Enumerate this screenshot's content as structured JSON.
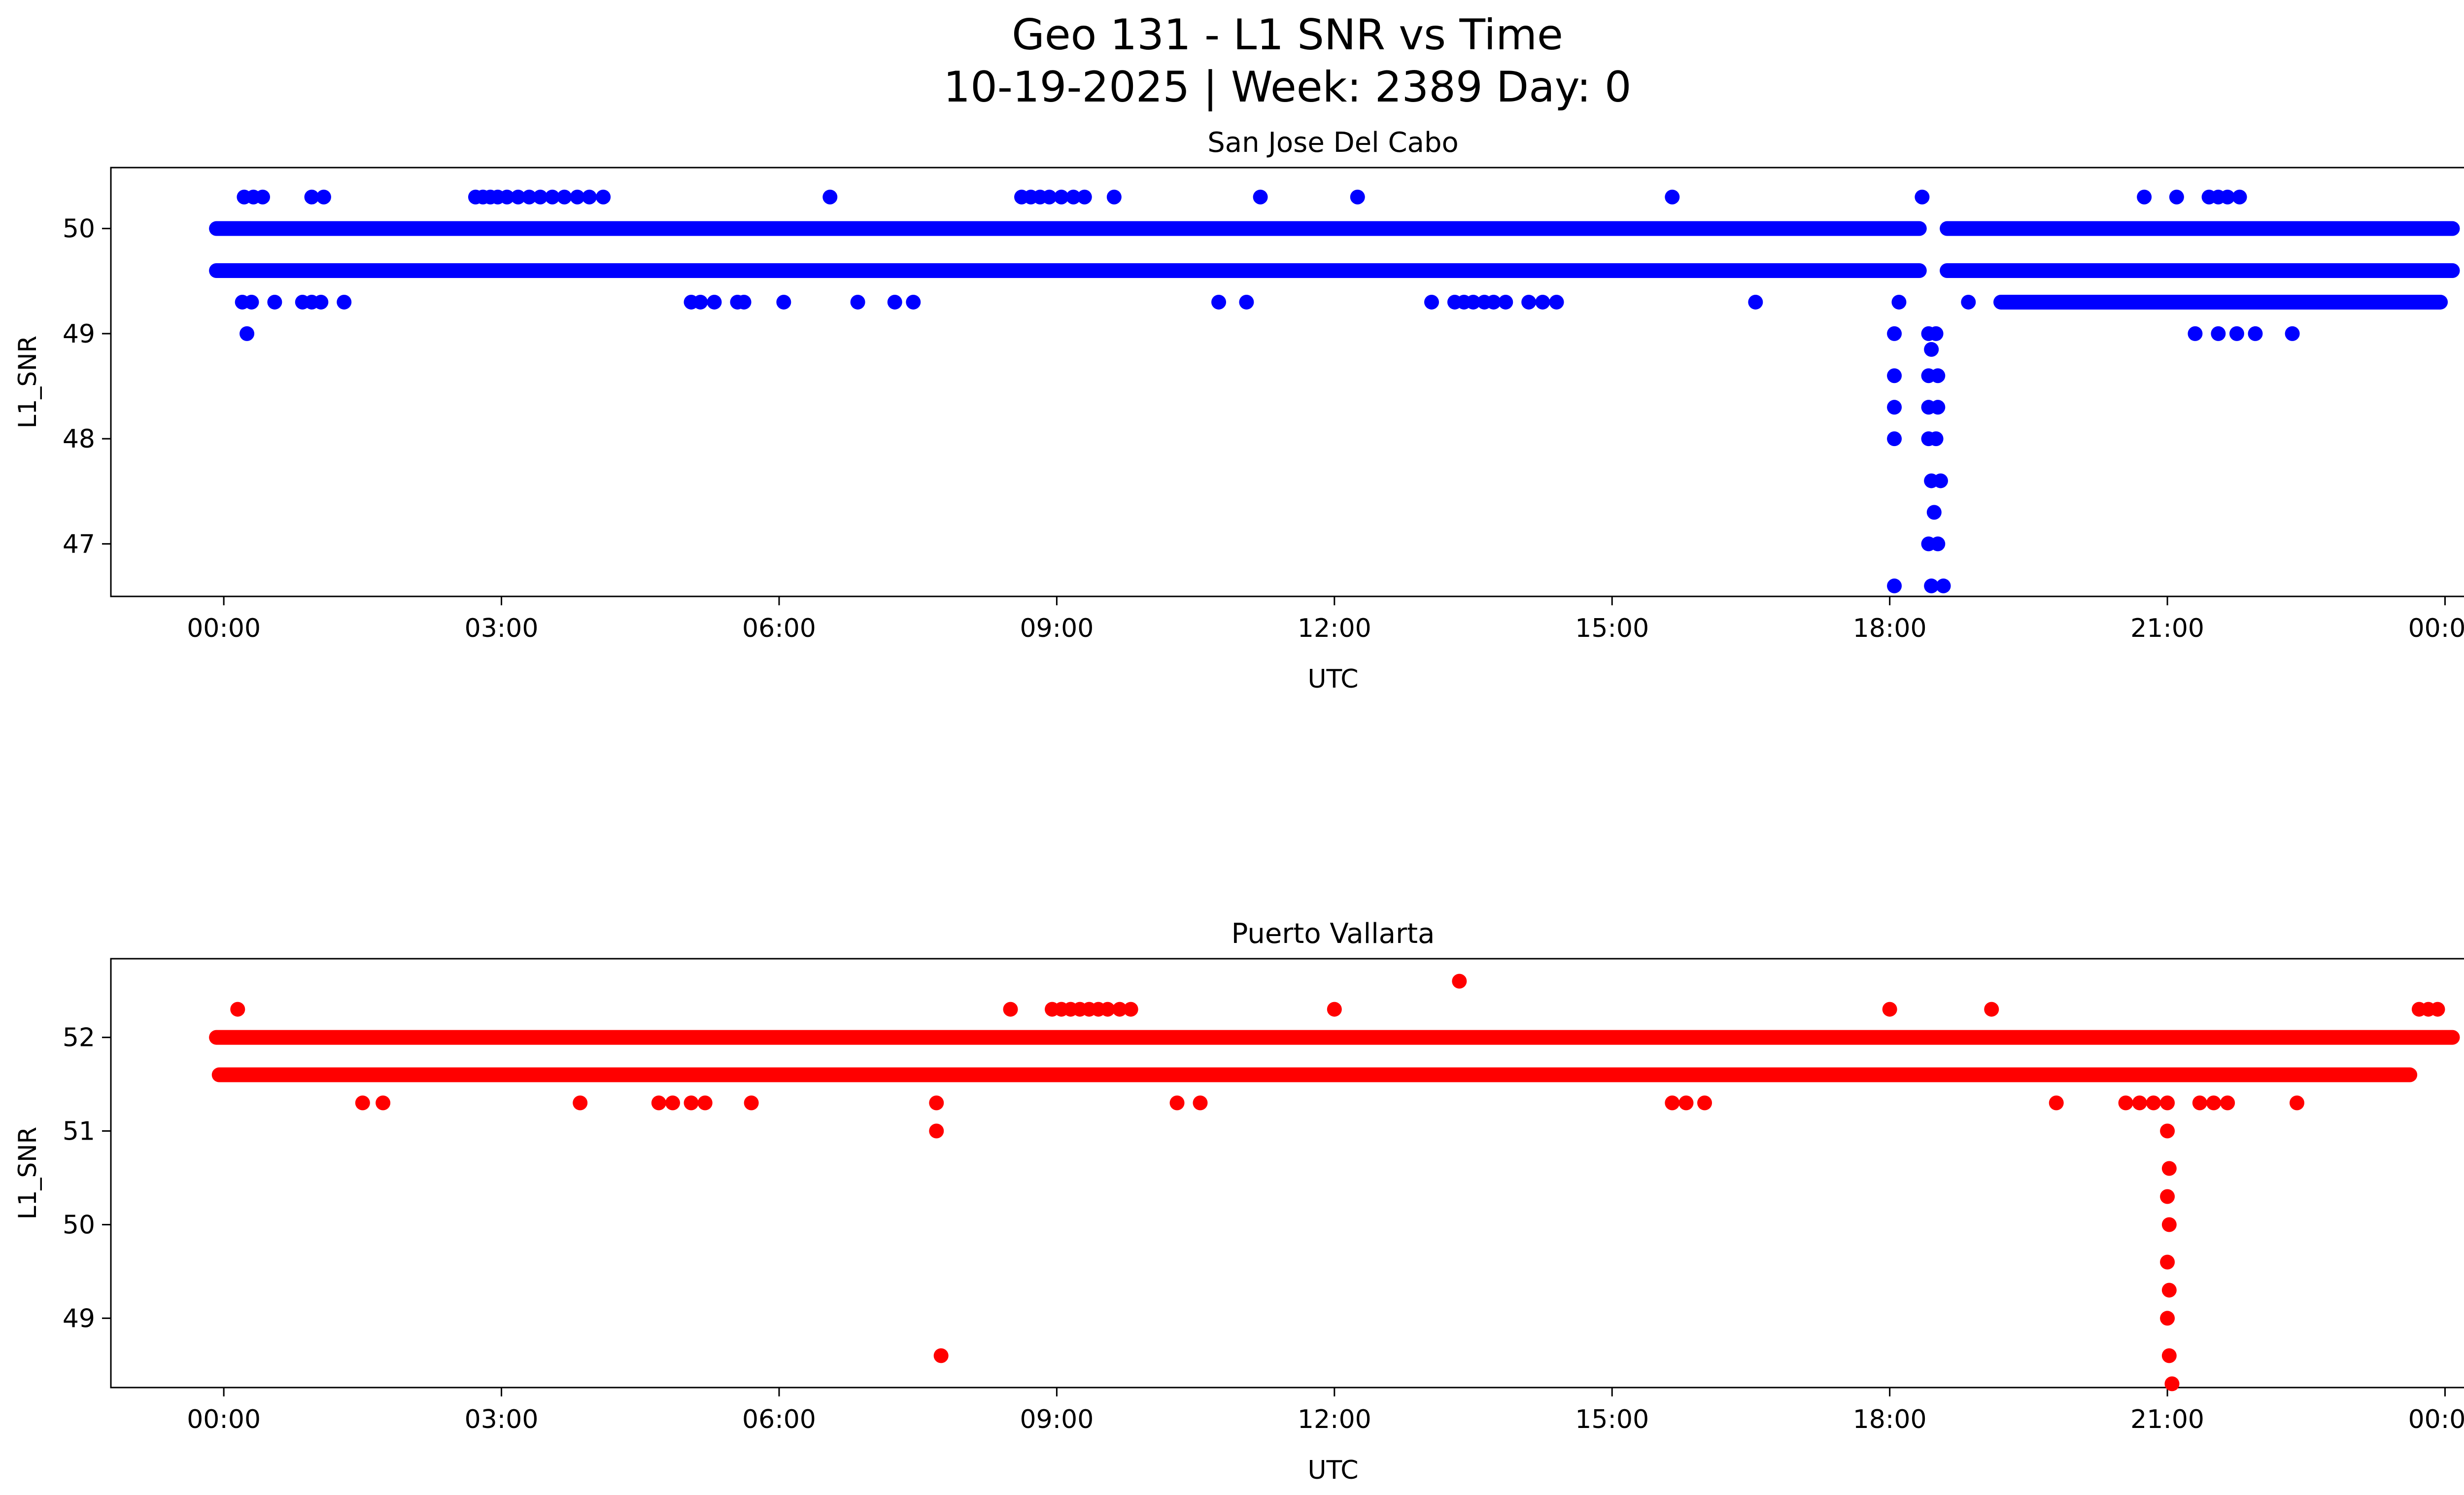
{
  "figure": {
    "title_line1": "Geo 131 - L1 SNR vs Time",
    "title_line2": "10-19-2025 | Week: 2389 Day: 0"
  },
  "chart_data": [
    {
      "type": "scatter",
      "title": "San Jose Del Cabo",
      "xlabel": "UTC",
      "ylabel": "L1_SNR",
      "color": "#0000ff",
      "xlim": [
        -1.22,
        25.19
      ],
      "ylim": [
        46.5,
        50.58
      ],
      "x_tick_hours": [
        0,
        3,
        6,
        9,
        12,
        15,
        18,
        21,
        24
      ],
      "x_tick_labels": [
        "00:00",
        "03:00",
        "06:00",
        "09:00",
        "12:00",
        "15:00",
        "18:00",
        "21:00",
        "00:00"
      ],
      "y_ticks": [
        47,
        48,
        49,
        50
      ],
      "grid": false,
      "legend": null,
      "bands": [
        {
          "y": 50.0,
          "segments": [
            [
              -0.08,
              18.32
            ],
            [
              18.62,
              24.08
            ]
          ]
        },
        {
          "y": 49.6,
          "segments": [
            [
              -0.08,
              18.32
            ],
            [
              18.62,
              24.08
            ]
          ]
        },
        {
          "y": 49.3,
          "segments": [
            [
              19.2,
              23.95
            ]
          ]
        }
      ],
      "points": [
        [
          0.22,
          50.3
        ],
        [
          0.32,
          50.3
        ],
        [
          0.42,
          50.3
        ],
        [
          0.95,
          50.3
        ],
        [
          1.08,
          50.3
        ],
        [
          2.72,
          50.3
        ],
        [
          2.8,
          50.3
        ],
        [
          2.88,
          50.3
        ],
        [
          2.96,
          50.3
        ],
        [
          3.06,
          50.3
        ],
        [
          3.18,
          50.3
        ],
        [
          3.3,
          50.3
        ],
        [
          3.42,
          50.3
        ],
        [
          3.55,
          50.3
        ],
        [
          3.68,
          50.3
        ],
        [
          3.82,
          50.3
        ],
        [
          3.95,
          50.3
        ],
        [
          4.1,
          50.3
        ],
        [
          6.55,
          50.3
        ],
        [
          8.62,
          50.3
        ],
        [
          8.72,
          50.3
        ],
        [
          8.82,
          50.3
        ],
        [
          8.92,
          50.3
        ],
        [
          9.05,
          50.3
        ],
        [
          9.18,
          50.3
        ],
        [
          9.3,
          50.3
        ],
        [
          9.62,
          50.3
        ],
        [
          11.2,
          50.3
        ],
        [
          12.25,
          50.3
        ],
        [
          15.65,
          50.3
        ],
        [
          18.35,
          50.3
        ],
        [
          20.75,
          50.3
        ],
        [
          21.1,
          50.3
        ],
        [
          21.45,
          50.3
        ],
        [
          21.55,
          50.3
        ],
        [
          21.65,
          50.3
        ],
        [
          21.78,
          50.3
        ],
        [
          0.2,
          49.3
        ],
        [
          0.3,
          49.3
        ],
        [
          0.55,
          49.3
        ],
        [
          0.85,
          49.3
        ],
        [
          0.95,
          49.3
        ],
        [
          1.05,
          49.3
        ],
        [
          1.3,
          49.3
        ],
        [
          5.05,
          49.3
        ],
        [
          5.15,
          49.3
        ],
        [
          5.3,
          49.3
        ],
        [
          5.55,
          49.3
        ],
        [
          5.62,
          49.3
        ],
        [
          6.05,
          49.3
        ],
        [
          6.85,
          49.3
        ],
        [
          7.25,
          49.3
        ],
        [
          7.45,
          49.3
        ],
        [
          10.75,
          49.3
        ],
        [
          11.05,
          49.3
        ],
        [
          13.05,
          49.3
        ],
        [
          13.3,
          49.3
        ],
        [
          13.4,
          49.3
        ],
        [
          13.5,
          49.3
        ],
        [
          13.62,
          49.3
        ],
        [
          13.72,
          49.3
        ],
        [
          13.85,
          49.3
        ],
        [
          14.1,
          49.3
        ],
        [
          14.25,
          49.3
        ],
        [
          14.4,
          49.3
        ],
        [
          16.55,
          49.3
        ],
        [
          18.1,
          49.3
        ],
        [
          18.85,
          49.3
        ],
        [
          0.25,
          49.0
        ],
        [
          18.05,
          49.0
        ],
        [
          18.42,
          49.0
        ],
        [
          18.5,
          49.0
        ],
        [
          21.3,
          49.0
        ],
        [
          21.55,
          49.0
        ],
        [
          21.75,
          49.0
        ],
        [
          21.95,
          49.0
        ],
        [
          22.35,
          49.0
        ],
        [
          18.05,
          48.6
        ],
        [
          18.05,
          48.3
        ],
        [
          18.05,
          48.0
        ],
        [
          18.05,
          46.6
        ],
        [
          18.45,
          48.85
        ],
        [
          18.42,
          48.6
        ],
        [
          18.52,
          48.6
        ],
        [
          18.42,
          48.3
        ],
        [
          18.52,
          48.3
        ],
        [
          18.42,
          48.0
        ],
        [
          18.5,
          48.0
        ],
        [
          18.45,
          47.6
        ],
        [
          18.55,
          47.6
        ],
        [
          18.48,
          47.3
        ],
        [
          18.42,
          47.0
        ],
        [
          18.52,
          47.0
        ],
        [
          18.45,
          46.6
        ],
        [
          18.58,
          46.6
        ]
      ]
    },
    {
      "type": "scatter",
      "title": "Puerto Vallarta",
      "xlabel": "UTC",
      "ylabel": "L1_SNR",
      "color": "#ff0000",
      "xlim": [
        -1.22,
        25.19
      ],
      "ylim": [
        48.26,
        52.84
      ],
      "x_tick_hours": [
        0,
        3,
        6,
        9,
        12,
        15,
        18,
        21,
        24
      ],
      "x_tick_labels": [
        "00:00",
        "03:00",
        "06:00",
        "09:00",
        "12:00",
        "15:00",
        "18:00",
        "21:00",
        "00:00"
      ],
      "y_ticks": [
        49,
        50,
        51,
        52
      ],
      "grid": false,
      "legend": null,
      "bands": [
        {
          "y": 52.0,
          "segments": [
            [
              -0.08,
              24.08
            ]
          ]
        },
        {
          "y": 51.6,
          "segments": [
            [
              -0.05,
              23.62
            ]
          ]
        }
      ],
      "points": [
        [
          0.15,
          52.3
        ],
        [
          8.5,
          52.3
        ],
        [
          8.95,
          52.3
        ],
        [
          9.05,
          52.3
        ],
        [
          9.15,
          52.3
        ],
        [
          9.25,
          52.3
        ],
        [
          9.35,
          52.3
        ],
        [
          9.45,
          52.3
        ],
        [
          9.55,
          52.3
        ],
        [
          9.68,
          52.3
        ],
        [
          9.8,
          52.3
        ],
        [
          12.0,
          52.3
        ],
        [
          18.0,
          52.3
        ],
        [
          19.1,
          52.3
        ],
        [
          23.72,
          52.3
        ],
        [
          23.82,
          52.3
        ],
        [
          23.92,
          52.3
        ],
        [
          13.35,
          52.6
        ],
        [
          1.5,
          51.3
        ],
        [
          1.72,
          51.3
        ],
        [
          3.85,
          51.3
        ],
        [
          4.7,
          51.3
        ],
        [
          4.85,
          51.3
        ],
        [
          5.05,
          51.3
        ],
        [
          5.2,
          51.3
        ],
        [
          5.7,
          51.3
        ],
        [
          7.7,
          51.3
        ],
        [
          10.3,
          51.3
        ],
        [
          10.55,
          51.3
        ],
        [
          15.65,
          51.3
        ],
        [
          15.8,
          51.3
        ],
        [
          16.0,
          51.3
        ],
        [
          19.8,
          51.3
        ],
        [
          20.55,
          51.3
        ],
        [
          20.7,
          51.3
        ],
        [
          20.85,
          51.3
        ],
        [
          21.0,
          51.3
        ],
        [
          21.35,
          51.3
        ],
        [
          21.5,
          51.3
        ],
        [
          21.65,
          51.3
        ],
        [
          22.4,
          51.3
        ],
        [
          7.7,
          51.0
        ],
        [
          7.75,
          48.6
        ],
        [
          21.0,
          51.0
        ],
        [
          21.02,
          50.6
        ],
        [
          21.0,
          50.3
        ],
        [
          21.02,
          50.0
        ],
        [
          21.0,
          49.6
        ],
        [
          21.02,
          49.3
        ],
        [
          21.0,
          49.0
        ],
        [
          21.02,
          48.6
        ],
        [
          21.05,
          48.3
        ]
      ]
    }
  ]
}
